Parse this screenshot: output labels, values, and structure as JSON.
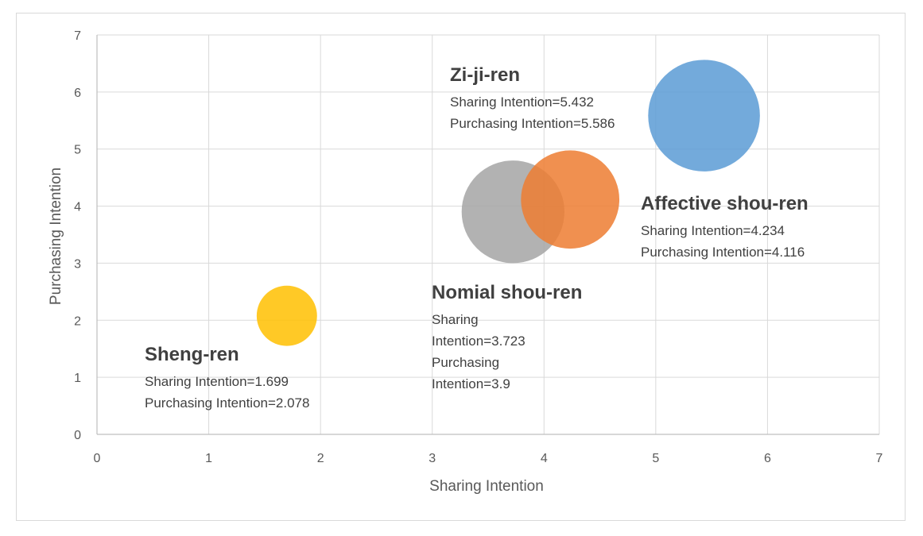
{
  "chart_data": {
    "type": "scatter",
    "subtype": "bubble",
    "xlabel": "Sharing Intention",
    "ylabel": "Purchasing Intention",
    "xlim": [
      0,
      7
    ],
    "ylim": [
      0,
      7
    ],
    "xticks": [
      0,
      1,
      2,
      3,
      4,
      5,
      6,
      7
    ],
    "yticks": [
      0,
      1,
      2,
      3,
      4,
      5,
      6,
      7
    ],
    "grid": true,
    "legend": "none",
    "points": [
      {
        "name": "Sheng-ren",
        "x": 1.699,
        "y": 2.078,
        "size": 0.27,
        "color": "#FFC000",
        "label_lines": [
          "Sharing Intention=1.699",
          "Purchasing Intention=2.078"
        ]
      },
      {
        "name": "Nomial shou-ren",
        "x": 3.723,
        "y": 3.9,
        "size": 0.46,
        "color": "#A5A5A5",
        "label_lines": [
          "Sharing",
          "Intention=3.723",
          "Purchasing",
          "Intention=3.9"
        ]
      },
      {
        "name": "Affective shou-ren",
        "x": 4.234,
        "y": 4.116,
        "size": 0.44,
        "color": "#ED7D31",
        "label_lines": [
          "Sharing Intention=4.234",
          "Purchasing Intention=4.116"
        ]
      },
      {
        "name": "Zi-ji-ren",
        "x": 5.432,
        "y": 5.586,
        "size": 0.5,
        "color": "#5B9BD5",
        "label_lines": [
          "Sharing Intention=5.432",
          "Purchasing Intention=5.586"
        ]
      }
    ]
  }
}
